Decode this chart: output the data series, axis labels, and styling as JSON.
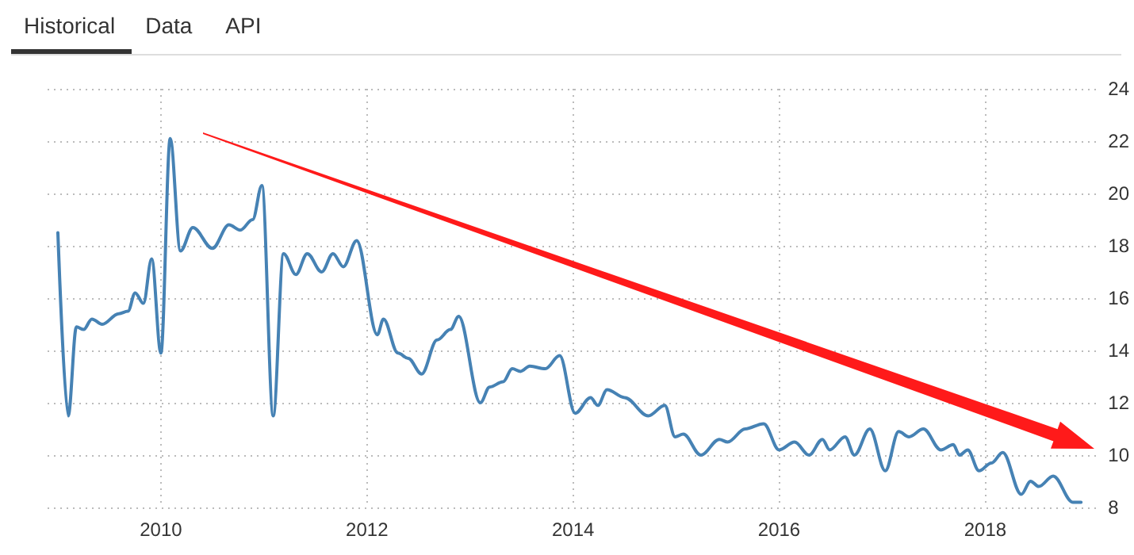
{
  "chart_data": {
    "type": "line",
    "annotations": [
      "Historical",
      "Data",
      "API"
    ],
    "x": [
      2009.0,
      2009.1,
      2009.18,
      2009.25,
      2009.33,
      2009.43,
      2009.59,
      2009.68,
      2009.75,
      2009.83,
      2009.91,
      2010.0,
      2010.09,
      2010.19,
      2010.31,
      2010.5,
      2010.66,
      2010.77,
      2010.89,
      2010.98,
      2011.09,
      2011.19,
      2011.31,
      2011.42,
      2011.56,
      2011.67,
      2011.77,
      2011.9,
      2012.1,
      2012.16,
      2012.3,
      2012.4,
      2012.53,
      2012.68,
      2012.81,
      2012.89,
      2013.1,
      2013.19,
      2013.32,
      2013.41,
      2013.49,
      2013.58,
      2013.73,
      2013.87,
      2014.02,
      2014.17,
      2014.24,
      2014.33,
      2014.5,
      2014.73,
      2014.89,
      2014.99,
      2015.07,
      2015.24,
      2015.42,
      2015.5,
      2015.67,
      2015.85,
      2016.0,
      2016.15,
      2016.29,
      2016.42,
      2016.49,
      2016.64,
      2016.73,
      2016.88,
      2017.03,
      2017.16,
      2017.26,
      2017.4,
      2017.57,
      2017.69,
      2017.75,
      2017.83,
      2017.94,
      2018.06,
      2018.17,
      2018.35,
      2018.44,
      2018.52,
      2018.66,
      2018.85,
      2018.93
    ],
    "series": [
      {
        "color": "#4682b4",
        "values": [
          18.5,
          11.5,
          14.9,
          14.8,
          15.2,
          15.0,
          15.4,
          15.5,
          16.2,
          15.8,
          17.5,
          13.9,
          22.1,
          17.8,
          18.7,
          17.9,
          18.8,
          18.6,
          19.0,
          20.3,
          11.5,
          17.7,
          16.9,
          17.7,
          17.0,
          17.7,
          17.2,
          18.2,
          14.6,
          15.2,
          13.9,
          13.7,
          13.1,
          14.4,
          14.8,
          15.3,
          12.0,
          12.6,
          12.8,
          13.3,
          13.2,
          13.4,
          13.3,
          13.8,
          11.6,
          12.2,
          11.9,
          12.5,
          12.2,
          11.5,
          11.9,
          10.7,
          10.8,
          10.0,
          10.6,
          10.5,
          11.0,
          11.2,
          10.2,
          10.5,
          10.0,
          10.6,
          10.2,
          10.7,
          10.0,
          11.0,
          9.4,
          10.9,
          10.7,
          11.0,
          10.2,
          10.4,
          10.0,
          10.2,
          9.4,
          9.7,
          10.1,
          8.5,
          9.0,
          8.8,
          9.2,
          8.2,
          8.2
        ]
      }
    ],
    "xlim": [
      2008.9,
      2019.1
    ],
    "xticks": [
      2010,
      2012,
      2014,
      2016,
      2018
    ],
    "ylim": [
      8,
      24
    ],
    "yticks": [
      8,
      10,
      12,
      14,
      16,
      18,
      20,
      22,
      24
    ],
    "grid": true
  }
}
